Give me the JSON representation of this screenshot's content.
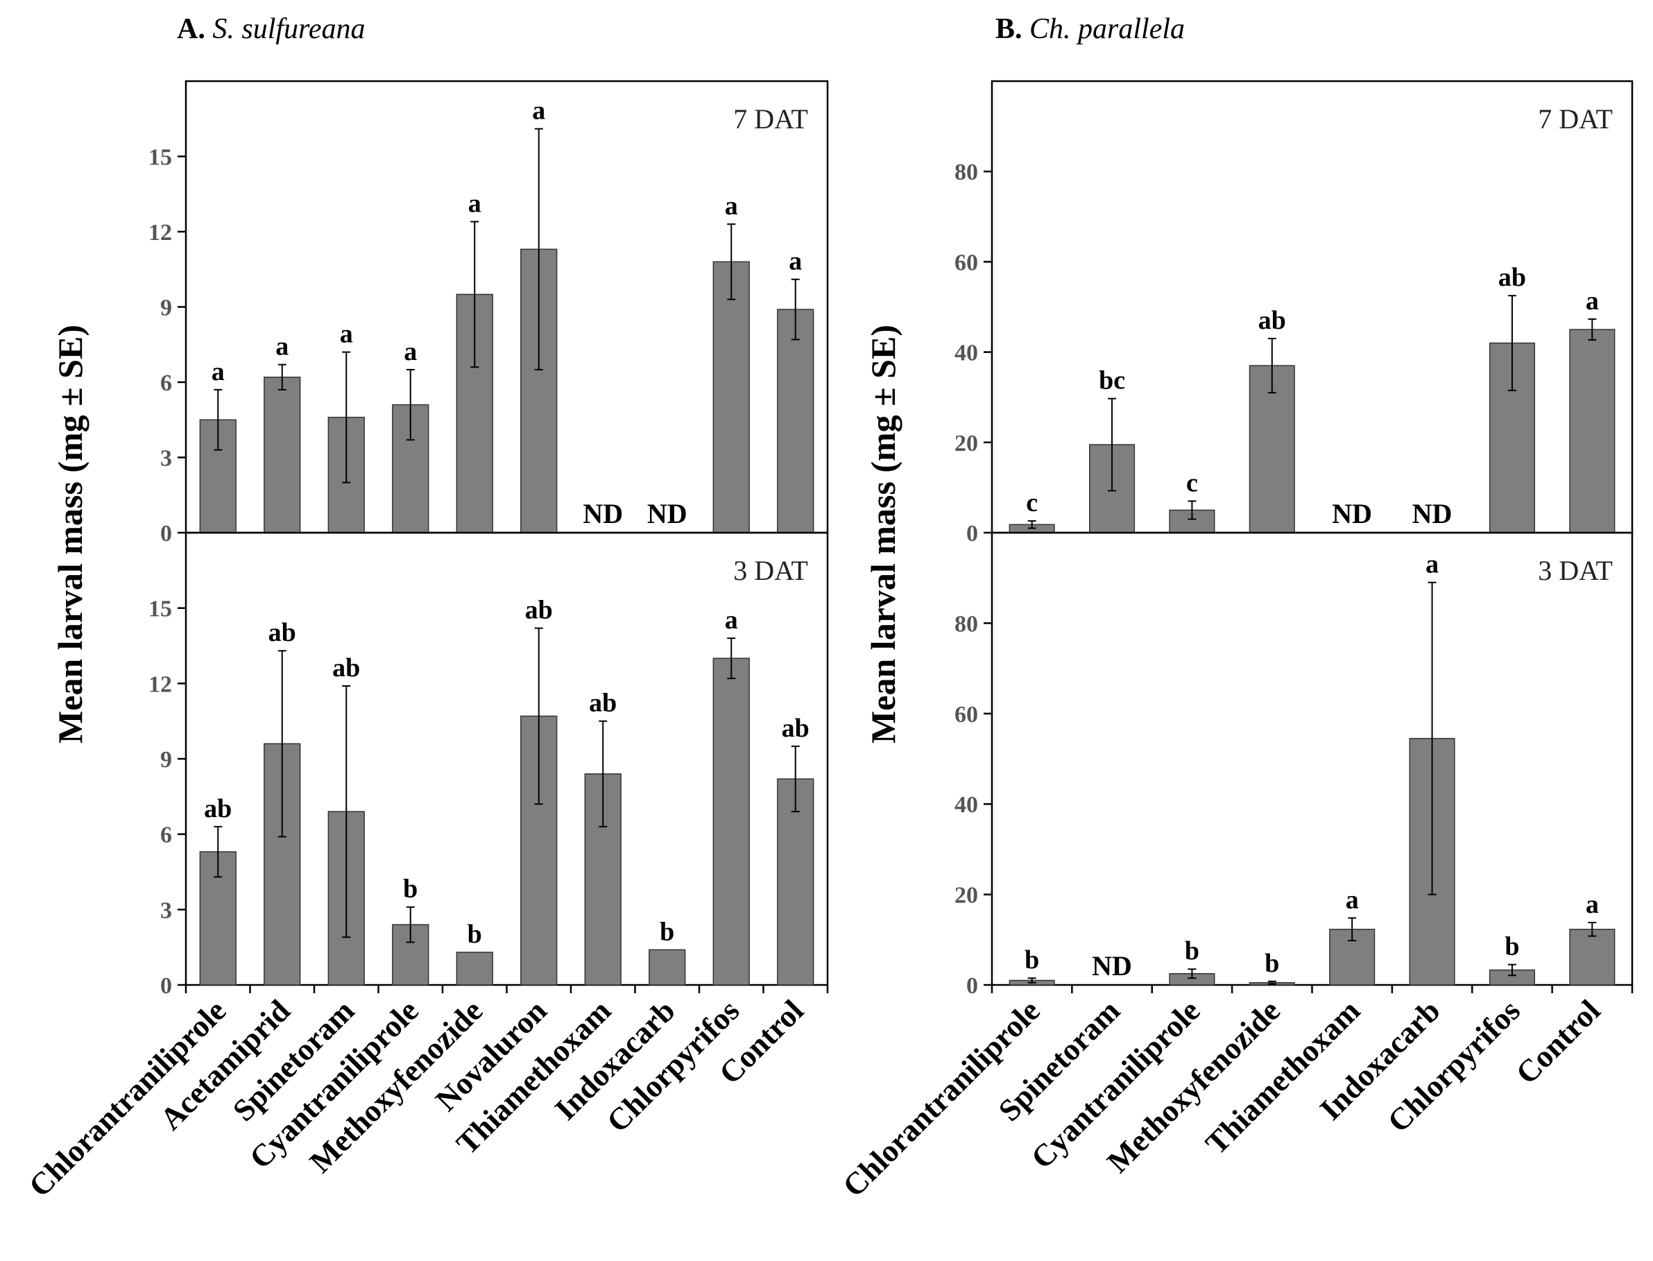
{
  "chart_data": [
    {
      "type": "bar",
      "panel": "A",
      "title": "A.",
      "species": "S. sulfureana",
      "ylabel": "Mean larval mass (mg ± SE)",
      "nd_label": "ND",
      "categories": [
        "Chlorantraniliprole",
        "Acetamiprid",
        "Spinetoram",
        "Cyantraniliprole",
        "Methoxyfenozide",
        "Novaluron",
        "Thiamethoxam",
        "Indoxacarb",
        "Chlorpyrifos",
        "Control"
      ],
      "subplots": [
        {
          "label": "7 DAT",
          "ylim": [
            0,
            18
          ],
          "yticks": [
            0,
            3,
            6,
            9,
            12,
            15
          ],
          "values": [
            4.5,
            6.2,
            4.6,
            5.1,
            9.5,
            11.3,
            null,
            null,
            10.8,
            8.9
          ],
          "errors": [
            1.2,
            0.5,
            2.6,
            1.4,
            2.9,
            4.8,
            null,
            null,
            1.5,
            1.2
          ],
          "letters": [
            "a",
            "a",
            "a",
            "a",
            "a",
            "a",
            "ND",
            "ND",
            "a",
            "a"
          ]
        },
        {
          "label": "3 DAT",
          "ylim": [
            0,
            18
          ],
          "yticks": [
            0,
            3,
            6,
            9,
            12,
            15
          ],
          "values": [
            5.3,
            9.6,
            6.9,
            2.4,
            1.3,
            10.7,
            8.4,
            1.4,
            13.0,
            8.2
          ],
          "errors": [
            1.0,
            3.7,
            5.0,
            0.7,
            0,
            3.5,
            2.1,
            0,
            0.8,
            1.3
          ],
          "letters": [
            "ab",
            "ab",
            "ab",
            "b",
            "b",
            "ab",
            "ab",
            "b",
            "a",
            "ab"
          ]
        }
      ]
    },
    {
      "type": "bar",
      "panel": "B",
      "title": "B.",
      "species": "Ch. parallela",
      "ylabel": "Mean larval mass (mg ± SE)",
      "nd_label": "ND",
      "categories": [
        "Chlorantraniliprole",
        "Spinetoram",
        "Cyantraniliprole",
        "Methoxyfenozide",
        "Thiamethoxam",
        "Indoxacarb",
        "Chlorpyrifos",
        "Control"
      ],
      "subplots": [
        {
          "label": "7 DAT",
          "ylim": [
            0,
            100
          ],
          "yticks": [
            0,
            20,
            40,
            60,
            80
          ],
          "values": [
            1.8,
            19.5,
            5.0,
            37.0,
            null,
            null,
            42.0,
            45.0
          ],
          "errors": [
            0.8,
            10.2,
            2.0,
            6.0,
            null,
            null,
            10.5,
            2.3
          ],
          "letters": [
            "c",
            "bc",
            "c",
            "ab",
            "ND",
            "ND",
            "ab",
            "a"
          ]
        },
        {
          "label": "3 DAT",
          "ylim": [
            0,
            100
          ],
          "yticks": [
            0,
            20,
            40,
            60,
            80
          ],
          "values": [
            1.0,
            null,
            2.5,
            0.5,
            12.3,
            54.5,
            3.3,
            12.3
          ],
          "errors": [
            0.5,
            null,
            1.0,
            0.3,
            2.5,
            34.5,
            1.2,
            1.5
          ],
          "letters": [
            "b",
            "ND",
            "b",
            "b",
            "a",
            "a",
            "b",
            "a"
          ]
        }
      ]
    }
  ],
  "colors": {
    "bar": "#7f7f7f",
    "axis": "#000000",
    "tick_label": "#555555"
  }
}
